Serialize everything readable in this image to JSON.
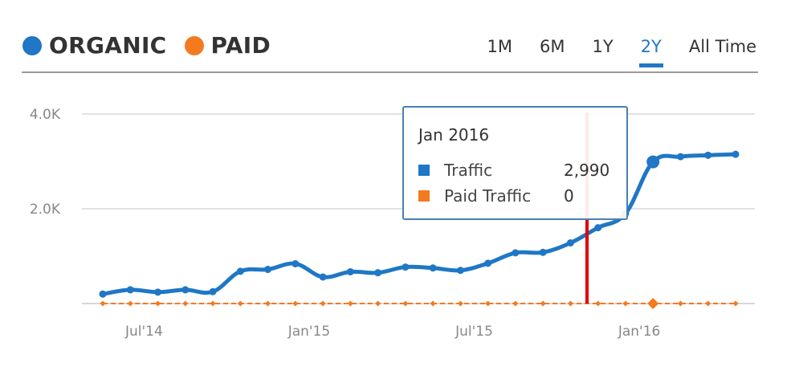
{
  "legend": [
    {
      "label": "ORGANIC",
      "color": "#1f77c5"
    },
    {
      "label": "PAID",
      "color": "#f47a20"
    }
  ],
  "ranges": [
    {
      "label": "1M",
      "active": false
    },
    {
      "label": "6M",
      "active": false
    },
    {
      "label": "1Y",
      "active": false
    },
    {
      "label": "2Y",
      "active": true
    },
    {
      "label": "All Time",
      "active": false
    }
  ],
  "tooltip": {
    "title": "Jan 2016",
    "rows": [
      {
        "label": "Traffic",
        "value": "2,990",
        "color": "#1f77c5"
      },
      {
        "label": "Paid Traffic",
        "value": "0",
        "color": "#f47a20"
      }
    ]
  },
  "chart_data": {
    "type": "line",
    "ylim": [
      0,
      4000
    ],
    "y_ticks": [
      {
        "value": 2000,
        "label": "2.0K"
      },
      {
        "value": 4000,
        "label": "4.0K"
      }
    ],
    "x_ticks": [
      "Jul'14",
      "Jan'15",
      "Jul'15",
      "Jan'16"
    ],
    "x_tick_indices": [
      1.5,
      7.5,
      13.5,
      19.5
    ],
    "grid": true,
    "cursor_index": 17.6,
    "series": [
      {
        "name": "ORGANIC",
        "color": "#1f77c5",
        "values": [
          200,
          290,
          240,
          290,
          250,
          680,
          720,
          840,
          560,
          670,
          650,
          770,
          750,
          700,
          850,
          1070,
          1080,
          1280,
          1600,
          1900,
          2990,
          3100,
          3130,
          3150
        ],
        "highlight_index": 20
      },
      {
        "name": "PAID",
        "color": "#f47a20",
        "values": [
          0,
          0,
          0,
          0,
          0,
          0,
          0,
          0,
          0,
          0,
          0,
          0,
          0,
          0,
          0,
          0,
          0,
          0,
          0,
          0,
          0,
          0,
          0,
          0
        ],
        "highlight_index": 20
      }
    ]
  }
}
